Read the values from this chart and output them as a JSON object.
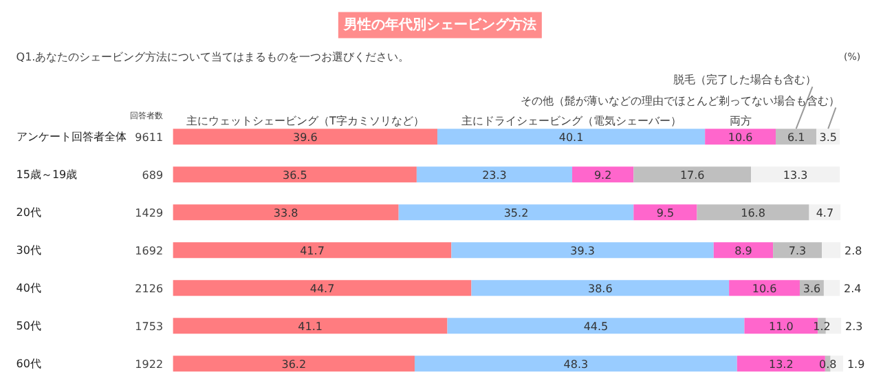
{
  "chart_data": {
    "type": "bar",
    "orientation": "horizontal",
    "stacked": true,
    "title": "男性の年代別シェービング方法",
    "subtitle": "Q1.あなたのシェービング方法について当てはまるものを一つお選びください。",
    "categories": [
      "アンケート回答者全体",
      "15歳～19歳",
      "20代",
      "30代",
      "40代",
      "50代",
      "60代"
    ],
    "series": [
      {
        "name": "主にウェットシェービング（T字カミソリなど）",
        "color": "#ff7c80",
        "values": [
          39.6,
          36.5,
          33.8,
          41.7,
          44.7,
          41.1,
          36.2
        ]
      },
      {
        "name": "主にドライシェービング（電気シェーバー）",
        "color": "#99ccff",
        "values": [
          40.1,
          23.3,
          35.2,
          39.3,
          38.6,
          44.5,
          48.3
        ]
      },
      {
        "name": "両方",
        "color": "#ff66cc",
        "values": [
          10.6,
          9.2,
          9.5,
          8.9,
          10.6,
          11.0,
          13.2
        ],
        "value_labels": [
          "10.6",
          "9.2",
          "9.5",
          "8.9",
          "10.6",
          "11.0",
          "13.2"
        ]
      },
      {
        "name": "脱毛（完了した場合も含む）",
        "color": "#bfbfbf",
        "values": [
          6.1,
          17.6,
          16.8,
          7.3,
          3.6,
          1.2,
          0.8
        ]
      },
      {
        "name": "その他（髭が薄いなどの理由でほとんど剃ってない場合も含む）",
        "color": "#f2f2f2",
        "values": [
          3.5,
          13.3,
          4.7,
          2.8,
          2.4,
          2.3,
          1.9
        ]
      }
    ],
    "tick_labels": false,
    "data_labels": true,
    "grid": false,
    "annotations": [
      "回答者数",
      "9611",
      "689",
      "1429",
      "1692",
      "2126",
      "1753",
      "1922",
      "(%)"
    ]
  }
}
